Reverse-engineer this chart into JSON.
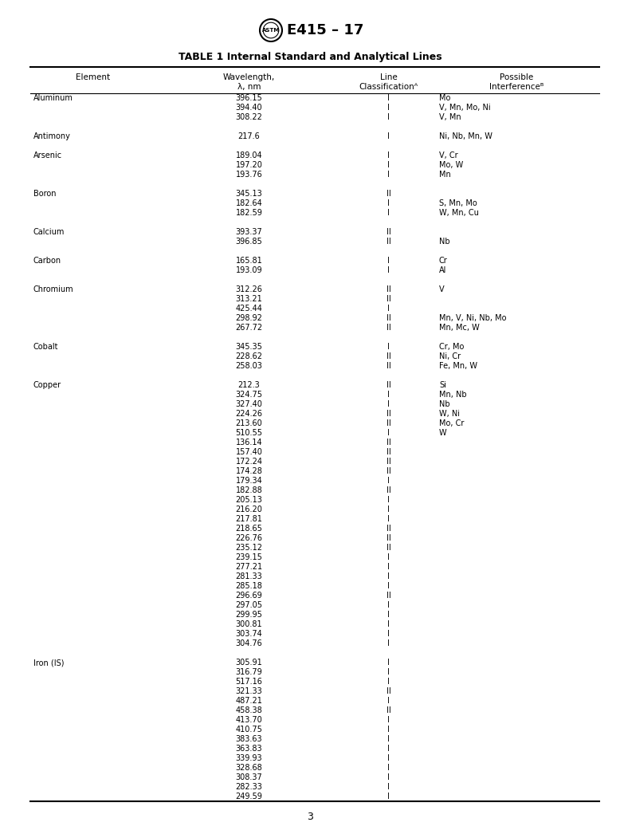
{
  "title_text": "E415 – 17",
  "table_title": "TABLE 1 Internal Standard and Analytical Lines",
  "headers_line1": [
    "Element",
    "Wavelength,",
    "Line",
    "Possible"
  ],
  "headers_line2": [
    "",
    "λ, nm",
    "Classificationᴬ",
    "Interferenceᴮ"
  ],
  "rows": [
    [
      "Aluminum",
      "396.15",
      "I",
      "Mo"
    ],
    [
      "",
      "394.40",
      "I",
      "V, Mn, Mo, Ni"
    ],
    [
      "",
      "308.22",
      "I",
      "V, Mn"
    ],
    [
      "",
      "",
      "",
      ""
    ],
    [
      "Antimony",
      "217.6",
      "I",
      "Ni, Nb, Mn, W"
    ],
    [
      "",
      "",
      "",
      ""
    ],
    [
      "Arsenic",
      "189.04",
      "I",
      "V, Cr"
    ],
    [
      "",
      "197.20",
      "I",
      "Mo, W"
    ],
    [
      "",
      "193.76",
      "I",
      "Mn"
    ],
    [
      "",
      "",
      "",
      ""
    ],
    [
      "Boron",
      "345.13",
      "II",
      ""
    ],
    [
      "",
      "182.64",
      "I",
      "S, Mn, Mo"
    ],
    [
      "",
      "182.59",
      "I",
      "W, Mn, Cu"
    ],
    [
      "",
      "",
      "",
      ""
    ],
    [
      "Calcium",
      "393.37",
      "II",
      ""
    ],
    [
      "",
      "396.85",
      "II",
      "Nb"
    ],
    [
      "",
      "",
      "",
      ""
    ],
    [
      "Carbon",
      "165.81",
      "I",
      "Cr"
    ],
    [
      "",
      "193.09",
      "I",
      "Al"
    ],
    [
      "",
      "",
      "",
      ""
    ],
    [
      "Chromium",
      "312.26",
      "II",
      "V"
    ],
    [
      "",
      "313.21",
      "II",
      ""
    ],
    [
      "",
      "425.44",
      "I",
      ""
    ],
    [
      "",
      "298.92",
      "II",
      "Mn, V, Ni, Nb, Mo"
    ],
    [
      "",
      "267.72",
      "II",
      "Mn, Mc, W"
    ],
    [
      "",
      "",
      "",
      ""
    ],
    [
      "Cobalt",
      "345.35",
      "I",
      "Cr, Mo"
    ],
    [
      "",
      "228.62",
      "II",
      "Ni, Cr"
    ],
    [
      "",
      "258.03",
      "II",
      "Fe, Mn, W"
    ],
    [
      "",
      "",
      "",
      ""
    ],
    [
      "Copper",
      "212.3",
      "II",
      "Si"
    ],
    [
      "",
      "324.75",
      "I",
      "Mn, Nb"
    ],
    [
      "",
      "327.40",
      "I",
      "Nb"
    ],
    [
      "",
      "224.26",
      "II",
      "W, Ni"
    ],
    [
      "",
      "213.60",
      "II",
      "Mo, Cr"
    ],
    [
      "",
      "510.55",
      "I",
      "W"
    ],
    [
      "",
      "136.14",
      "II",
      ""
    ],
    [
      "",
      "157.40",
      "II",
      ""
    ],
    [
      "",
      "172.24",
      "II",
      ""
    ],
    [
      "",
      "174.28",
      "II",
      ""
    ],
    [
      "",
      "179.34",
      "I",
      ""
    ],
    [
      "",
      "182.88",
      "II",
      ""
    ],
    [
      "",
      "205.13",
      "I",
      ""
    ],
    [
      "",
      "216.20",
      "I",
      ""
    ],
    [
      "",
      "217.81",
      "I",
      ""
    ],
    [
      "",
      "218.65",
      "II",
      ""
    ],
    [
      "",
      "226.76",
      "II",
      ""
    ],
    [
      "",
      "235.12",
      "II",
      ""
    ],
    [
      "",
      "239.15",
      "I",
      ""
    ],
    [
      "",
      "277.21",
      "I",
      ""
    ],
    [
      "",
      "281.33",
      "I",
      ""
    ],
    [
      "",
      "285.18",
      "I",
      ""
    ],
    [
      "",
      "296.69",
      "II",
      ""
    ],
    [
      "",
      "297.05",
      "I",
      ""
    ],
    [
      "",
      "299.95",
      "I",
      ""
    ],
    [
      "",
      "300.81",
      "I",
      ""
    ],
    [
      "",
      "303.74",
      "I",
      ""
    ],
    [
      "",
      "304.76",
      "I",
      ""
    ],
    [
      "",
      "",
      "",
      ""
    ],
    [
      "Iron (IS)",
      "305.91",
      "I",
      ""
    ],
    [
      "",
      "316.79",
      "I",
      ""
    ],
    [
      "",
      "517.16",
      "I",
      ""
    ],
    [
      "",
      "321.33",
      "II",
      ""
    ],
    [
      "",
      "487.21",
      "I",
      ""
    ],
    [
      "",
      "458.38",
      "II",
      ""
    ],
    [
      "",
      "413.70",
      "I",
      ""
    ],
    [
      "",
      "410.75",
      "I",
      ""
    ],
    [
      "",
      "383.63",
      "I",
      ""
    ],
    [
      "",
      "363.83",
      "I",
      ""
    ],
    [
      "",
      "339.93",
      "I",
      ""
    ],
    [
      "",
      "328.68",
      "I",
      ""
    ],
    [
      "",
      "308.37",
      "I",
      ""
    ],
    [
      "",
      "282.33",
      "I",
      ""
    ],
    [
      "",
      "249.59",
      "I",
      ""
    ]
  ],
  "page_number": "3",
  "background_color": "#ffffff",
  "text_color": "#000000",
  "font_size": 7.0,
  "header_font_size": 7.5,
  "title_font_size": 13,
  "table_title_font_size": 9.0
}
